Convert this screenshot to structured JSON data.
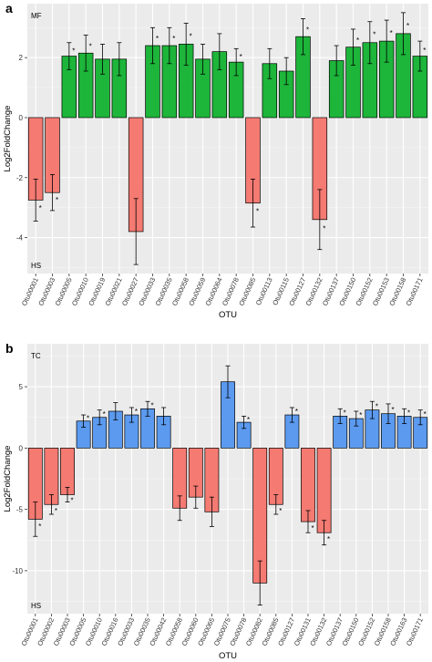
{
  "chart_data": [
    {
      "type": "bar",
      "panel": "a",
      "ylabel": "Log2FoldChange",
      "xlabel": "OTU",
      "ylim": [
        -5.2,
        3.8
      ],
      "yticks": [
        -4,
        -2,
        0,
        2
      ],
      "grid": true,
      "group_labels": {
        "top": "MF",
        "bottom": "HS"
      },
      "colors": {
        "positive": "#1db53a",
        "negative": "#f47a72"
      },
      "categories": [
        "Otu00001",
        "Otu00003",
        "Otu00005",
        "Otu00010",
        "Otu00019",
        "Otu00021",
        "Otu00027",
        "Otu00033",
        "Otu00035",
        "Otu00058",
        "Otu00059",
        "Otu00064",
        "Otu00078",
        "Otu00085",
        "Otu00113",
        "Otu00115",
        "Otu00127",
        "Otu00132",
        "Otu00137",
        "Otu00150",
        "Otu00152",
        "Otu00153",
        "Otu00158",
        "Otu00171"
      ],
      "values": [
        -2.75,
        -2.5,
        2.05,
        2.15,
        1.95,
        1.95,
        -3.8,
        2.4,
        2.4,
        2.45,
        1.95,
        2.2,
        1.85,
        -2.85,
        1.8,
        1.55,
        2.7,
        -3.4,
        1.9,
        2.35,
        2.5,
        2.55,
        2.8,
        2.05
      ],
      "errors": [
        0.7,
        0.6,
        0.45,
        0.6,
        0.5,
        0.55,
        1.1,
        0.6,
        0.6,
        0.7,
        0.5,
        0.6,
        0.45,
        0.8,
        0.5,
        0.45,
        0.6,
        1.0,
        0.5,
        0.6,
        0.7,
        0.7,
        0.7,
        0.5
      ],
      "significant": [
        true,
        true,
        true,
        true,
        false,
        false,
        false,
        true,
        true,
        true,
        false,
        false,
        true,
        true,
        false,
        false,
        true,
        true,
        false,
        true,
        true,
        true,
        true,
        true
      ],
      "star": "*"
    },
    {
      "type": "bar",
      "panel": "b",
      "ylabel": "Log2FoldChange",
      "xlabel": "OTU",
      "ylim": [
        -13.5,
        8.5
      ],
      "yticks": [
        -10,
        -5,
        0,
        5
      ],
      "grid": true,
      "group_labels": {
        "top": "TC",
        "bottom": "HS"
      },
      "colors": {
        "positive": "#5b9aef",
        "negative": "#f47a72"
      },
      "categories": [
        "Otu00001",
        "Otu00002",
        "Otu00003",
        "Otu00005",
        "Otu00010",
        "Otu00016",
        "Otu00033",
        "Otu00035",
        "Otu00042",
        "Otu00058",
        "Otu00060",
        "Otu00065",
        "Otu00075",
        "Otu00078",
        "Otu00082",
        "Otu00085",
        "Otu00127",
        "Otu00131",
        "Otu00132",
        "Otu00137",
        "Otu00150",
        "Otu00152",
        "Otu00158",
        "Otu00163",
        "Otu00171"
      ],
      "values": [
        -5.8,
        -4.6,
        -3.8,
        2.2,
        2.5,
        3.0,
        2.7,
        3.2,
        2.6,
        -4.9,
        -4.0,
        -5.2,
        5.4,
        2.1,
        -11.0,
        -4.6,
        2.7,
        -6.0,
        -6.9,
        2.6,
        2.4,
        3.1,
        2.8,
        2.6,
        2.5
      ],
      "errors": [
        1.4,
        0.8,
        0.6,
        0.5,
        0.6,
        0.7,
        0.6,
        0.6,
        0.7,
        1.0,
        0.9,
        1.2,
        1.3,
        0.5,
        1.8,
        0.8,
        0.6,
        0.9,
        1.0,
        0.6,
        0.6,
        0.7,
        0.8,
        0.6,
        0.6
      ],
      "significant": [
        true,
        true,
        true,
        true,
        true,
        false,
        true,
        true,
        false,
        false,
        false,
        false,
        false,
        true,
        false,
        true,
        true,
        true,
        true,
        true,
        true,
        true,
        true,
        true,
        true
      ],
      "star": "*"
    }
  ]
}
